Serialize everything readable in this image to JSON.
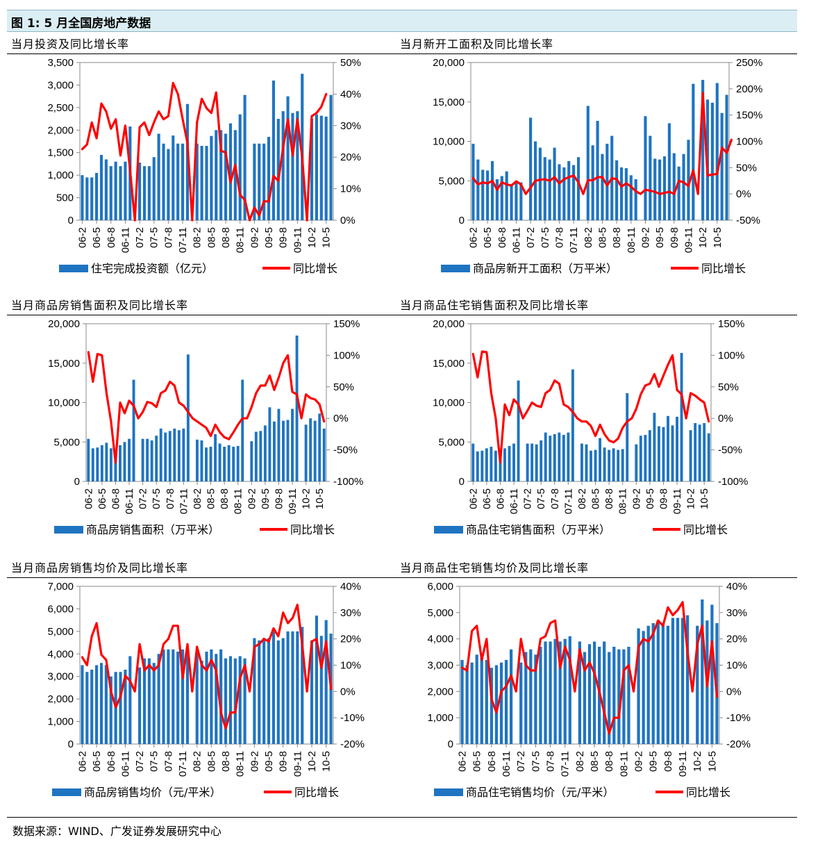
{
  "figure": {
    "title": "图 1:  5 月全国房地产数据",
    "source": "数据来源：WIND、广发证券发展研究中心"
  },
  "colors": {
    "bar": "#1f74c1",
    "line": "#ff0000",
    "axis": "#888888"
  },
  "chart_data": [
    {
      "type": "bar",
      "title": "当月投资及同比增长率",
      "tick_labels": [
        "06-2",
        "06-5",
        "06-8",
        "06-11",
        "07-2",
        "07-5",
        "07-8",
        "07-11",
        "08-2",
        "08-5",
        "08-8",
        "08-11",
        "09-2",
        "09-5",
        "09-8",
        "09-11",
        "10-2",
        "10-5"
      ],
      "tick_every": 3,
      "left_axis": {
        "min": 0,
        "max": 3500,
        "step": 500,
        "labels": [
          "0",
          "500",
          "1,000",
          "1,500",
          "2,000",
          "2,500",
          "3,000",
          "3,500"
        ]
      },
      "right_axis": {
        "min": 0,
        "max": 50,
        "step": 10,
        "labels": [
          "0%",
          "10%",
          "20%",
          "30%",
          "40%",
          "50%"
        ]
      },
      "series": [
        {
          "name": "住宅完成投资额（亿元）",
          "type": "bar",
          "axis": "left",
          "values": [
            1000,
            950,
            950,
            1050,
            1450,
            1350,
            1200,
            1300,
            1200,
            1300,
            2080,
            0,
            1280,
            1200,
            1200,
            1400,
            1920,
            1700,
            1580,
            1880,
            1700,
            1700,
            2580,
            0,
            1700,
            1650,
            1650,
            1870,
            2000,
            2000,
            1920,
            2150,
            2000,
            2350,
            2780,
            0,
            1700,
            1700,
            1700,
            1850,
            3100,
            2250,
            2420,
            2750,
            2380,
            2420,
            3250,
            0,
            2250,
            2350,
            2320,
            2300,
            2780
          ]
        },
        {
          "name": "同比增长",
          "type": "line",
          "axis": "right",
          "values": [
            22.5,
            24,
            31,
            26,
            37,
            34.5,
            29,
            32,
            20.5,
            30,
            16,
            0,
            29.5,
            31,
            27,
            31,
            34.5,
            32,
            33,
            43.5,
            40,
            32,
            24.5,
            0,
            31,
            38.5,
            35.5,
            34,
            40.5,
            22,
            21.5,
            12,
            17.5,
            8,
            6.5,
            0,
            4,
            1.5,
            6,
            6,
            14,
            12.5,
            23,
            32,
            20.5,
            32,
            20,
            0,
            33,
            34,
            36,
            40
          ]
        }
      ]
    },
    {
      "type": "bar",
      "title": "当月新开工面积及同比增长率",
      "tick_labels": [
        "06-2",
        "06-5",
        "06-8",
        "06-11",
        "07-2",
        "07-5",
        "07-8",
        "07-11",
        "08-2",
        "08-5",
        "08-8",
        "08-11",
        "09-2",
        "09-5",
        "09-8",
        "09-11",
        "10-2",
        "10-5"
      ],
      "tick_every": 3,
      "left_axis": {
        "min": 0,
        "max": 20000,
        "step": 5000,
        "labels": [
          "0",
          "5,000",
          "10,000",
          "15,000",
          "20,000"
        ]
      },
      "right_axis": {
        "min": -50,
        "max": 250,
        "step": 50,
        "labels": [
          "-50%",
          "0%",
          "50%",
          "100%",
          "150%",
          "200%",
          "250%"
        ]
      },
      "series": [
        {
          "name": "商品房新开工面积（万平米）",
          "type": "bar",
          "axis": "left",
          "values": [
            9700,
            7700,
            6400,
            6300,
            7500,
            5200,
            5600,
            6200,
            4600,
            4900,
            4800,
            0,
            13000,
            10000,
            9200,
            8000,
            7700,
            9200,
            7100,
            6700,
            7500,
            7000,
            8000,
            0,
            14500,
            9500,
            12600,
            8400,
            9700,
            10700,
            7600,
            6700,
            6600,
            5700,
            5200,
            0,
            13200,
            10700,
            7800,
            7700,
            8100,
            12300,
            8500,
            6800,
            8400,
            10200,
            17300,
            0,
            17800,
            15300,
            14900,
            17400,
            13600,
            15900
          ]
        },
        {
          "name": "同比增长",
          "type": "line",
          "axis": "right",
          "values": [
            30,
            18,
            22,
            20,
            25,
            8,
            22,
            18,
            16,
            24,
            18,
            0,
            12,
            25,
            27,
            28,
            25,
            32,
            20,
            28,
            32,
            35,
            22,
            0,
            26,
            26,
            32,
            32,
            16,
            30,
            28,
            14,
            20,
            14,
            5,
            0,
            8,
            6,
            4,
            0,
            2,
            4,
            0,
            25,
            22,
            15,
            45,
            0,
            192,
            35,
            37,
            38,
            88,
            78,
            103
          ]
        }
      ]
    },
    {
      "type": "bar",
      "title": "当月商品房销售面积及同比增长率",
      "tick_labels": [
        "06-2",
        "06-5",
        "06-8",
        "06-11",
        "07-2",
        "07-5",
        "07-8",
        "07-11",
        "08-2",
        "08-5",
        "08-8",
        "08-11",
        "09-2",
        "09-5",
        "09-8",
        "09-11",
        "10-2",
        "10-5"
      ],
      "tick_every": 3,
      "left_axis": {
        "min": 0,
        "max": 20000,
        "step": 5000,
        "labels": [
          "0",
          "5,000",
          "10,000",
          "15,000",
          "20,000"
        ]
      },
      "right_axis": {
        "min": -100,
        "max": 150,
        "step": 50,
        "labels": [
          "-100%",
          "-50%",
          "0%",
          "50%",
          "100%",
          "150%"
        ]
      },
      "series": [
        {
          "name": "商品房销售面积（万平米）",
          "type": "bar",
          "axis": "left",
          "values": [
            5400,
            4200,
            4300,
            4600,
            4900,
            4200,
            3600,
            4600,
            5000,
            5400,
            12900,
            0,
            5400,
            5400,
            5200,
            5800,
            6700,
            6200,
            6400,
            6700,
            6500,
            6700,
            16100,
            0,
            5300,
            5200,
            4300,
            4400,
            6000,
            4800,
            4400,
            4600,
            4400,
            4500,
            12900,
            0,
            5100,
            6300,
            6400,
            7100,
            9400,
            7600,
            9200,
            7700,
            7800,
            9200,
            18500,
            0,
            7200,
            8000,
            7700,
            8600,
            6700
          ]
        },
        {
          "name": "同比增长",
          "type": "line",
          "axis": "right",
          "values": [
            105,
            58,
            102,
            100,
            40,
            -5,
            -70,
            25,
            8,
            28,
            20,
            0,
            10,
            26,
            24,
            18,
            40,
            44,
            58,
            52,
            25,
            20,
            10,
            0,
            -5,
            -10,
            -15,
            -28,
            -10,
            -22,
            -30,
            -33,
            -22,
            -10,
            0,
            0,
            18,
            40,
            52,
            52,
            68,
            45,
            65,
            88,
            100,
            42,
            38,
            0,
            38,
            32,
            30,
            22,
            -5
          ]
        }
      ]
    },
    {
      "type": "bar",
      "title": "当月商品住宅销售面积及同比增长率",
      "tick_labels": [
        "06-2",
        "06-5",
        "06-8",
        "06-11",
        "07-2",
        "07-5",
        "07-8",
        "07-11",
        "08-2",
        "08-5",
        "08-8",
        "08-11",
        "09-2",
        "09-5",
        "09-8",
        "09-11",
        "10-2",
        "10-5"
      ],
      "tick_every": 3,
      "left_axis": {
        "min": 0,
        "max": 20000,
        "step": 5000,
        "labels": [
          "0",
          "5,000",
          "10,000",
          "15,000",
          "20,000"
        ]
      },
      "right_axis": {
        "min": -100,
        "max": 150,
        "step": 50,
        "labels": [
          "-100%",
          "-50%",
          "0%",
          "50%",
          "100%",
          "150%"
        ]
      },
      "series": [
        {
          "name": "商品住宅销售面积（万平米）",
          "type": "bar",
          "axis": "left",
          "values": [
            4800,
            3800,
            3900,
            4200,
            4400,
            3900,
            3300,
            4200,
            4500,
            4800,
            12800,
            0,
            4800,
            4800,
            4700,
            5200,
            6200,
            5800,
            6000,
            6200,
            5900,
            6200,
            14200,
            0,
            4800,
            4700,
            3900,
            4000,
            5500,
            4300,
            4000,
            4200,
            4000,
            4100,
            11200,
            0,
            4700,
            5800,
            5900,
            6500,
            8700,
            7000,
            6900,
            8300,
            7100,
            8200,
            16300,
            0,
            6500,
            7400,
            7200,
            7400,
            6100
          ]
        },
        {
          "name": "同比增长",
          "type": "line",
          "axis": "right",
          "values": [
            102,
            65,
            106,
            105,
            40,
            0,
            -70,
            22,
            5,
            30,
            22,
            0,
            12,
            25,
            20,
            18,
            40,
            45,
            60,
            55,
            22,
            18,
            10,
            0,
            -5,
            -5,
            -12,
            -28,
            -10,
            -25,
            -35,
            -38,
            -32,
            -15,
            -5,
            0,
            15,
            38,
            52,
            55,
            70,
            50,
            68,
            85,
            100,
            45,
            38,
            0,
            40,
            36,
            30,
            25,
            -5
          ]
        }
      ]
    },
    {
      "type": "bar",
      "title": "当月商品房销售均价及同比增长率",
      "tick_labels": [
        "06-2",
        "06-5",
        "06-8",
        "06-11",
        "07-2",
        "07-5",
        "07-8",
        "07-11",
        "08-2",
        "08-5",
        "08-8",
        "08-11",
        "09-2",
        "09-5",
        "09-8",
        "09-11",
        "10-2",
        "10-5"
      ],
      "tick_every": 3,
      "left_axis": {
        "min": 0,
        "max": 7000,
        "step": 1000,
        "labels": [
          "0",
          "1,000",
          "2,000",
          "3,000",
          "4,000",
          "5,000",
          "6,000",
          "7,000"
        ]
      },
      "right_axis": {
        "min": -20,
        "max": 40,
        "step": 10,
        "labels": [
          "-20%",
          "-10%",
          "0%",
          "10%",
          "20%",
          "30%",
          "40%"
        ]
      },
      "series": [
        {
          "name": "商品房销售均价（元/平米）",
          "type": "bar",
          "axis": "left",
          "values": [
            3500,
            3200,
            3300,
            3500,
            3600,
            3500,
            3000,
            3200,
            3200,
            3300,
            3900,
            0,
            3400,
            3800,
            3800,
            3600,
            4000,
            4200,
            4200,
            4200,
            4100,
            4200,
            4200,
            0,
            4100,
            3700,
            4100,
            4200,
            4000,
            4200,
            3800,
            3900,
            3800,
            3900,
            3800,
            0,
            4700,
            4600,
            4700,
            4700,
            5000,
            4600,
            4700,
            5000,
            5000,
            5000,
            5200,
            0,
            4600,
            5700,
            4800,
            5500,
            4900
          ]
        },
        {
          "name": "同比增长",
          "type": "line",
          "axis": "right",
          "values": [
            13,
            10,
            21,
            26,
            14,
            12,
            0,
            -6,
            -2,
            6,
            4,
            0,
            18,
            8,
            10,
            8,
            10,
            18,
            20,
            25,
            25,
            5,
            18,
            0,
            17,
            10,
            8,
            12,
            8,
            -8,
            -14,
            -8,
            -8,
            5,
            10,
            0,
            17,
            18,
            20,
            19,
            24,
            21,
            30,
            26,
            28,
            33,
            18,
            0,
            19,
            20,
            9,
            19,
            1
          ]
        }
      ]
    },
    {
      "type": "bar",
      "title": "当月商品住宅销售均价及同比增长率",
      "tick_labels": [
        "06-2",
        "06-5",
        "06-8",
        "06-11",
        "07-2",
        "07-5",
        "07-8",
        "07-11",
        "08-2",
        "08-5",
        "08-8",
        "08-11",
        "09-2",
        "09-5",
        "09-8",
        "09-11",
        "10-2",
        "10-5"
      ],
      "tick_every": 3,
      "left_axis": {
        "min": 0,
        "max": 6000,
        "step": 1000,
        "labels": [
          "0",
          "1,000",
          "2,000",
          "3,000",
          "4,000",
          "5,000",
          "6,000"
        ]
      },
      "right_axis": {
        "min": -20,
        "max": 40,
        "step": 10,
        "labels": [
          "-20%",
          "-10%",
          "0%",
          "10%",
          "20%",
          "30%",
          "40%"
        ]
      },
      "series": [
        {
          "name": "商品住宅销售均价（元/平米）",
          "type": "bar",
          "axis": "left",
          "values": [
            3200,
            3000,
            3100,
            3400,
            3300,
            3200,
            2900,
            3000,
            3100,
            3200,
            3600,
            0,
            3100,
            3500,
            3600,
            3400,
            3700,
            3900,
            3900,
            4000,
            3900,
            4000,
            4100,
            0,
            3900,
            3500,
            3800,
            3900,
            3700,
            3900,
            3500,
            3700,
            3600,
            3600,
            3700,
            0,
            4400,
            4300,
            4500,
            4600,
            4700,
            4600,
            4500,
            4800,
            4800,
            4800,
            4900,
            0,
            4500,
            5500,
            4700,
            5300,
            4600
          ]
        },
        {
          "name": "同比增长",
          "type": "line",
          "axis": "right",
          "values": [
            9,
            8,
            23,
            25,
            12,
            20,
            -3,
            -8,
            0,
            2,
            6,
            0,
            20,
            10,
            8,
            8,
            20,
            21,
            26,
            27,
            9,
            17,
            12,
            0,
            16,
            8,
            11,
            7,
            0,
            -8,
            -16,
            -10,
            -10,
            8,
            10,
            0,
            17,
            20,
            19,
            22,
            27,
            25,
            32,
            29,
            31,
            34,
            15,
            0,
            18,
            25,
            2,
            19,
            -2
          ]
        }
      ]
    }
  ]
}
